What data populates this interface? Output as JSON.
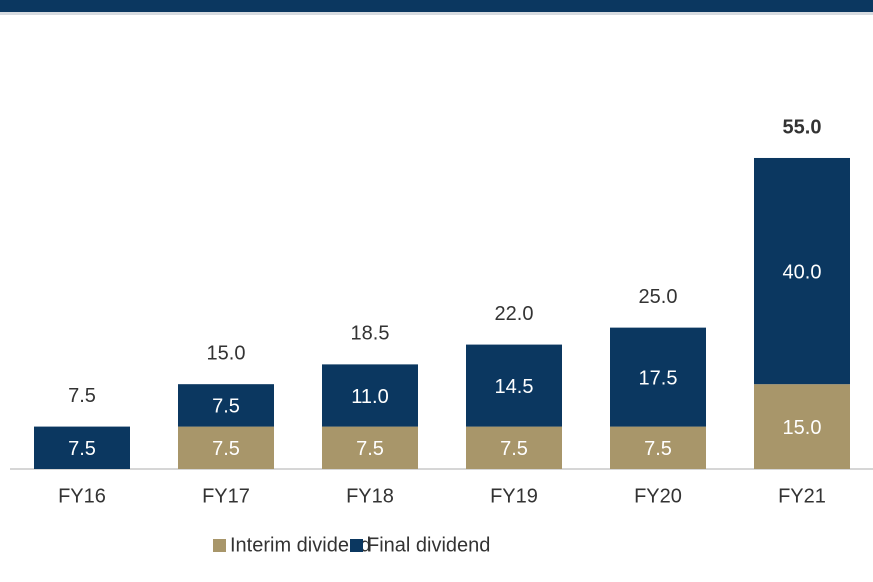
{
  "chart_data": {
    "type": "stacked_bar",
    "categories": [
      "FY16",
      "FY17",
      "FY18",
      "FY19",
      "FY20",
      "FY21"
    ],
    "series": [
      {
        "name": "Interim dividend",
        "color": "#a8966a",
        "values": [
          null,
          7.5,
          7.5,
          7.5,
          7.5,
          15
        ],
        "value_labels": [
          null,
          "7.5",
          "7.5",
          "7.5",
          "7.5",
          "15.0"
        ]
      },
      {
        "name": "Final dividend",
        "color": "#0b3760",
        "values": [
          7.5,
          7.5,
          11,
          14.5,
          17.5,
          40
        ],
        "value_labels": [
          "7.5",
          "7.5",
          "11.0",
          "14.5",
          "17.5",
          "40.0"
        ]
      }
    ],
    "totals": {
      "values": [
        7.5,
        15,
        18.5,
        22,
        25,
        55
      ],
      "value_labels": [
        "7.5",
        "15.0",
        "18.5",
        "22.0",
        "25.0",
        "55.0"
      ]
    },
    "ylim": [
      0,
      60
    ]
  }
}
